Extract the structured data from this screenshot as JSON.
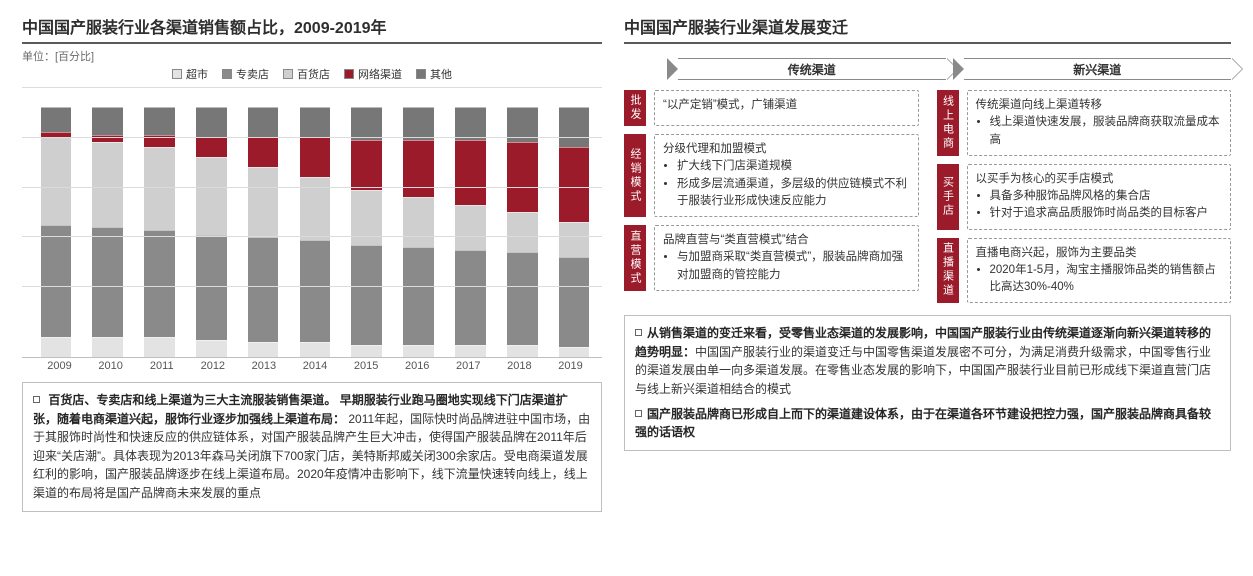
{
  "left": {
    "title": "中国国产服装行业各渠道销售额占比，2009-2019年",
    "unit": "单位：[百分比]",
    "legend": [
      {
        "label": "超市",
        "color": "#e3e3e3"
      },
      {
        "label": "专卖店",
        "color": "#8a8a8a"
      },
      {
        "label": "百货店",
        "color": "#cfcfcf"
      },
      {
        "label": "网络渠道",
        "color": "#9c1b2b"
      },
      {
        "label": "其他",
        "color": "#777777"
      }
    ],
    "chart": {
      "type": "stacked-bar",
      "categories": [
        "2009",
        "2010",
        "2011",
        "2012",
        "2013",
        "2014",
        "2015",
        "2016",
        "2017",
        "2018",
        "2019"
      ],
      "ylim": [
        0,
        100
      ],
      "grid_step": 20,
      "grid_color": "#dcdcdc",
      "series_order": [
        "其他",
        "网络渠道",
        "百货店",
        "专卖店",
        "超市"
      ],
      "colors": {
        "超市": "#e3e3e3",
        "专卖店": "#8a8a8a",
        "百货店": "#cfcfcf",
        "网络渠道": "#9c1b2b",
        "其他": "#777777"
      },
      "data": {
        "超市": [
          8,
          8,
          8,
          7,
          6,
          6,
          5,
          5,
          5,
          5,
          4
        ],
        "专卖店": [
          45,
          44,
          43,
          42,
          42,
          41,
          40,
          39,
          38,
          37,
          36
        ],
        "百货店": [
          35,
          34,
          33,
          31,
          28,
          25,
          22,
          20,
          18,
          16,
          14
        ],
        "网络渠道": [
          2,
          3,
          5,
          8,
          12,
          16,
          20,
          23,
          26,
          28,
          30
        ],
        "其他": [
          10,
          11,
          11,
          12,
          12,
          12,
          13,
          13,
          13,
          14,
          16
        ]
      }
    },
    "bullet": {
      "lead_bold": "百货店、专卖店和线上渠道为三大主流服装销售渠道。",
      "lead_bold2": "早期服装行业跑马圈地实现线下门店渠道扩张，随着电商渠道兴起，服饰行业逐步加强线上渠道布局：",
      "rest": "2011年起，国际快时尚品牌进驻中国市场，由于其服饰时尚性和快速反应的供应链体系，对国产服装品牌产生巨大冲击，使得国产服装品牌在2011年后迎来“关店潮”。具体表现为2013年森马关闭旗下700家门店，美特斯邦威关闭300余家店。受电商渠道发展红利的影响，国产服装品牌逐步在线上渠道布局。2020年疫情冲击影响下，线下流量快速转向线上，线上渠道的布局将是国产品牌商未来发展的重点"
    }
  },
  "right": {
    "title": "中国国产服装行业渠道发展变迁",
    "headers": {
      "left": "传统渠道",
      "right": "新兴渠道"
    },
    "left_boxes": [
      {
        "tag": "批发",
        "lines": [
          "“以产定销”模式，广铺渠道"
        ]
      },
      {
        "tag": "经销模式",
        "lines": [
          "分级代理和加盟模式",
          "扩大线下门店渠道规模",
          "形成多层流通渠道，多层级的供应链模式不利于服装行业形成快速反应能力"
        ]
      },
      {
        "tag": "直营模式",
        "lines": [
          "品牌直营与“类直营模式”结合",
          "与加盟商采取“类直营模式”，服装品牌商加强对加盟商的管控能力"
        ]
      }
    ],
    "right_boxes": [
      {
        "tag": "线上电商",
        "lines": [
          "传统渠道向线上渠道转移",
          "线上渠道快速发展，服装品牌商获取流量成本高"
        ]
      },
      {
        "tag": "买手店",
        "lines": [
          "以买手为核心的买手店模式",
          "具备多种服饰品牌风格的集合店",
          "针对于追求高品质服饰时尚品类的目标客户"
        ]
      },
      {
        "tag": "直播渠道",
        "lines": [
          "直播电商兴起，服饰为主要品类",
          "2020年1-5月，淘宝主播服饰品类的销售额占比高达30%-40%"
        ]
      }
    ],
    "bullets": [
      {
        "bold": "从销售渠道的变迁来看，受零售业态渠道的发展影响，中国国产服装行业由传统渠道逐渐向新兴渠道转移的趋势明显：",
        "rest": "中国国产服装行业的渠道变迁与中国零售渠道发展密不可分，为满足消费升级需求，中国零售行业的渠道发展由单一向多渠道发展。在零售业态发展的影响下，中国国产服装行业目前已形成线下渠道直营门店与线上新兴渠道相结合的模式"
      },
      {
        "bold": "国产服装品牌商已形成自上而下的渠道建设体系，由于在渠道各环节建设把控力强，国产服装品牌商具备较强的话语权",
        "rest": ""
      }
    ]
  }
}
